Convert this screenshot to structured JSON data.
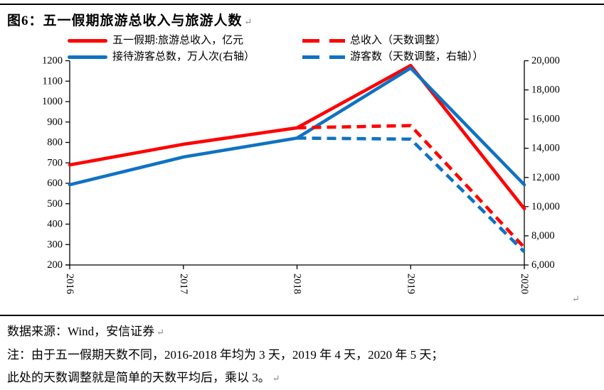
{
  "page": {
    "title": "图6：五一假期旅游总收入与旅游人数",
    "eop_mark": "↵",
    "source": "数据来源：Wind，安信证券",
    "note_line1": "注：由于五一假期天数不同，2016-2018 年均为 3 天，2019 年 4 天，2020 年 5 天；",
    "note_line2": "此处的天数调整就是简单的天数平均后，乘以 3。"
  },
  "colors": {
    "revenue_red": "#FF0000",
    "visitors_blue": "#0F72C4",
    "axis_black": "#000000"
  },
  "legend": [
    {
      "label": "五一假期:旅游总收入，亿元",
      "color": "#FF0000",
      "style": "solid"
    },
    {
      "label": "接待游客总数，万人次(右轴）",
      "color": "#0F72C4",
      "style": "solid"
    },
    {
      "label": "总收入（天数调整）",
      "color": "#FF0000",
      "style": "dashed"
    },
    {
      "label": "游客数（天数调整，右轴））",
      "color": "#0F72C4",
      "style": "dashed"
    }
  ],
  "chart_data": {
    "type": "line",
    "title": "五一假期旅游总收入与旅游人数",
    "x": [
      "2016",
      "2017",
      "2018",
      "2019",
      "2020"
    ],
    "series": [
      {
        "name": "五一假期:旅游总收入，亿元",
        "axis": "left",
        "style": "solid",
        "color": "#FF0000",
        "values": [
          690,
          791,
          871.6,
          1176.7,
          475.6
        ]
      },
      {
        "name": "接待游客总数，万人次(右轴）",
        "axis": "right",
        "style": "solid",
        "color": "#0F72C4",
        "values": [
          11500,
          13400,
          14700,
          19500,
          11500
        ]
      },
      {
        "name": "总收入（天数调整）",
        "axis": "left",
        "style": "dashed",
        "color": "#FF0000",
        "values": [
          null,
          null,
          871.6,
          882.5,
          285.4
        ]
      },
      {
        "name": "游客数（天数调整，右轴））",
        "axis": "right",
        "style": "dashed",
        "color": "#0F72C4",
        "values": [
          null,
          null,
          14700,
          14625,
          6900
        ]
      }
    ],
    "left_axis": {
      "min": 200,
      "max": 1200,
      "step": 100,
      "tick_labels": [
        "1200",
        "1100",
        "1000",
        "900",
        "800",
        "700",
        "600",
        "500",
        "400",
        "300",
        "200"
      ]
    },
    "right_axis": {
      "min": 6000,
      "max": 20000,
      "step": 2000,
      "tick_labels": [
        "20,000",
        "18,000",
        "16,000",
        "14,000",
        "12,000",
        "10,000",
        "8,000",
        "6,000"
      ]
    },
    "grid": false,
    "legend_position": "top"
  }
}
